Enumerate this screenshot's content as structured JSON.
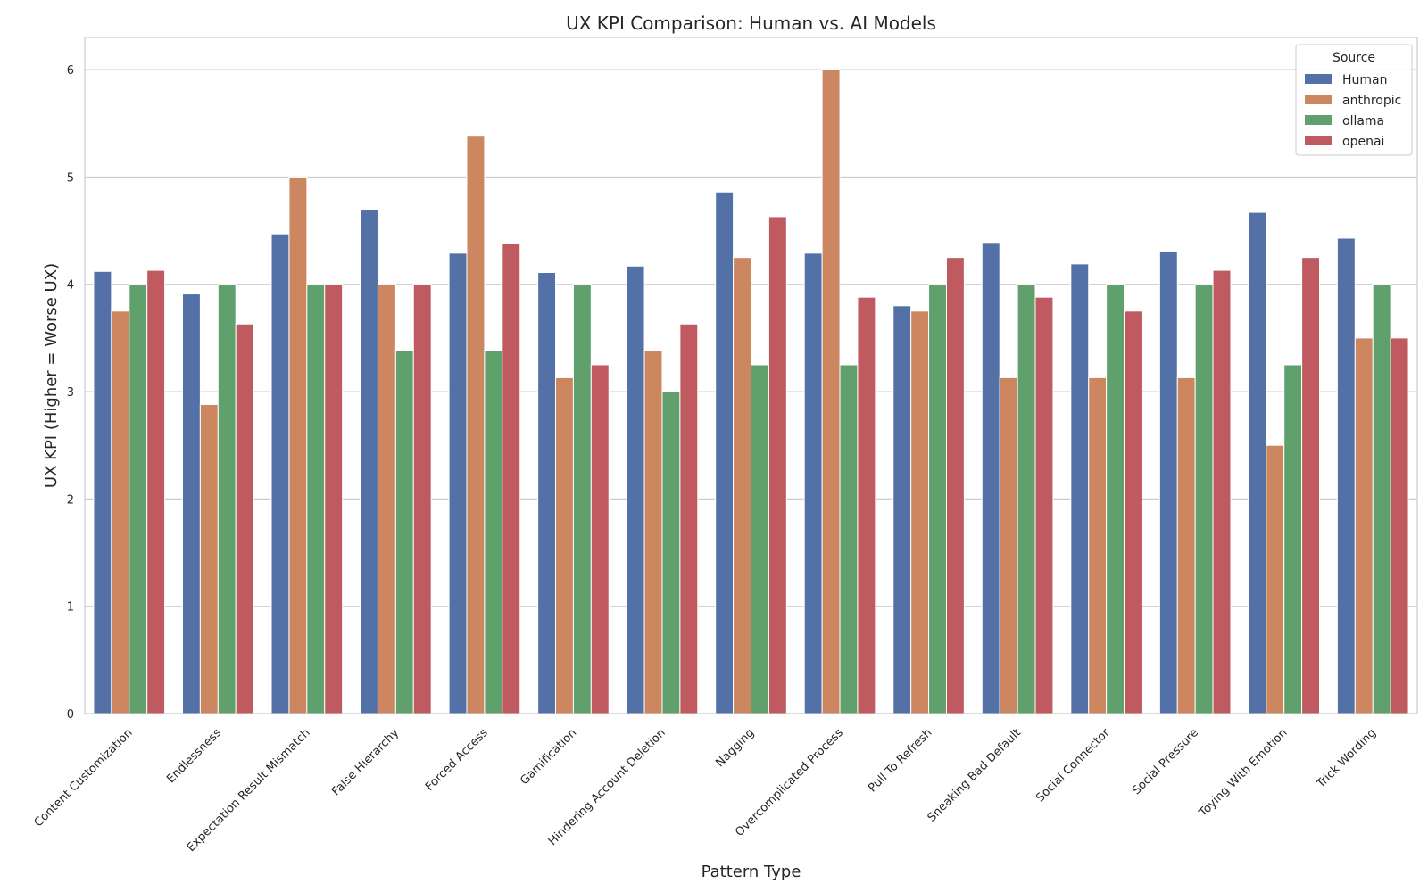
{
  "chart_data": {
    "type": "bar",
    "title": "UX KPI Comparison: Human vs. AI Models",
    "xlabel": "Pattern Type",
    "ylabel": "UX KPI (Higher = Worse UX)",
    "ylim": [
      0,
      6.3
    ],
    "yticks": [
      0,
      1,
      2,
      3,
      4,
      5,
      6
    ],
    "grid": "horizontal",
    "legend": {
      "title": "Source",
      "placement": "top-right"
    },
    "categories": [
      "Content Customization",
      "Endlessness",
      "Expectation Result Mismatch",
      "False Hierarchy",
      "Forced Access",
      "Gamification",
      "Hindering Account Deletion",
      "Nagging",
      "Overcomplicated Process",
      "Pull To Refresh",
      "Sneaking Bad Default",
      "Social Connector",
      "Social Pressure",
      "Toying With Emotion",
      "Trick Wording"
    ],
    "series": [
      {
        "name": "Human",
        "color": "#5471a7",
        "values": [
          4.12,
          3.91,
          4.47,
          4.7,
          4.29,
          4.11,
          4.17,
          4.86,
          4.29,
          3.8,
          4.39,
          4.19,
          4.31,
          4.67,
          4.43
        ]
      },
      {
        "name": "anthropic",
        "color": "#cc8660",
        "values": [
          3.75,
          2.88,
          5.0,
          4.0,
          5.38,
          3.13,
          3.38,
          4.25,
          6.0,
          3.75,
          3.13,
          3.13,
          3.13,
          2.5,
          3.5
        ]
      },
      {
        "name": "ollama",
        "color": "#5fa06c",
        "values": [
          4.0,
          4.0,
          4.0,
          3.38,
          3.38,
          4.0,
          3.0,
          3.25,
          3.25,
          4.0,
          4.0,
          4.0,
          4.0,
          3.25,
          4.0
        ]
      },
      {
        "name": "openai",
        "color": "#bf5a60",
        "values": [
          4.13,
          3.63,
          4.0,
          4.0,
          4.38,
          3.25,
          3.63,
          4.63,
          3.88,
          4.25,
          3.88,
          3.75,
          4.13,
          4.25,
          3.5
        ]
      }
    ]
  }
}
